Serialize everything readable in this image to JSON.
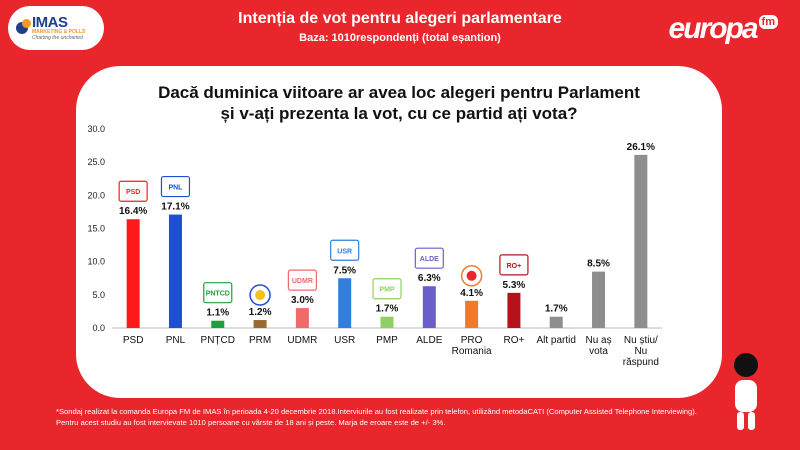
{
  "header": {
    "title": "Intenția de vot pentru alegeri parlamentare",
    "subtitle": "Baza: 1010respondenți (total eșantion)"
  },
  "logos": {
    "imas_big": "IMAS",
    "imas_small": "MARKETING & POLLS",
    "imas_slogan": "Charting the uncharted",
    "europa": "europa",
    "europa_fm": "fm"
  },
  "question": {
    "line1": "Dacă duminica viitoare ar avea loc alegeri pentru Parlament",
    "line2": "și v-ați prezenta la vot, cu ce partid ați vota?"
  },
  "party_logo_text": {
    "PSD": "PSD",
    "PNL": "PNL",
    "PNȚCD": "PNTCD",
    "UDMR": "UDMR",
    "USR": "USR",
    "PMP": "PMP",
    "ALDE": "ALDE",
    "RO+": "RO+"
  },
  "chart_data": {
    "type": "bar",
    "categories": [
      "PSD",
      "PNL",
      "PNȚCD",
      "PRM",
      "UDMR",
      "USR",
      "PMP",
      "ALDE",
      "PRO Romania",
      "RO+",
      "Alt partid",
      "Nu aș vota",
      "Nu știu/ Nu răspund"
    ],
    "category_lines": [
      [
        "PSD"
      ],
      [
        "PNL"
      ],
      [
        "PNȚCD"
      ],
      [
        "PRM"
      ],
      [
        "UDMR"
      ],
      [
        "USR"
      ],
      [
        "PMP"
      ],
      [
        "ALDE"
      ],
      [
        "PRO",
        "Romania"
      ],
      [
        "RO+"
      ],
      [
        "Alt partid"
      ],
      [
        "Nu aș",
        "vota"
      ],
      [
        "Nu știu/",
        "Nu",
        "răspund"
      ]
    ],
    "values": [
      16.4,
      17.1,
      1.1,
      1.2,
      3.0,
      7.5,
      1.7,
      6.3,
      4.1,
      5.3,
      1.7,
      8.5,
      26.1
    ],
    "value_labels": [
      "16.4%",
      "17.1%",
      "1.1%",
      "1.2%",
      "3.0%",
      "7.5%",
      "1.7%",
      "6.3%",
      "4.1%",
      "5.3%",
      "1.7%",
      "8.5%",
      "26.1%"
    ],
    "colors": [
      "#ff1a1a",
      "#1f4fd1",
      "#1f9e3d",
      "#9a6b2e",
      "#f06a6a",
      "#2e7fe0",
      "#8fd066",
      "#6a5fc9",
      "#f07a2a",
      "#b5121b",
      "#8e8e8e",
      "#8e8e8e",
      "#8e8e8e"
    ],
    "ylim": [
      0,
      30
    ],
    "yticks": [
      "0.0",
      "5.0",
      "10.0",
      "15.0",
      "20.0",
      "25.0",
      "30.0"
    ],
    "grid": false,
    "legend": "none"
  },
  "footnote": {
    "line1": "*Sondaj realizat la comanda Europa FM de IMAS în perioada 4-20 decembrie 2018.Interviurile au fost realizate prin telefon, utilizând metodaCATI (Computer Assisted Telephone Interviewing).",
    "line2": "Pentru acest studiu au fost intervievate 1010 persoane cu vârste de 18 ani și peste. Marja de eroare este de +/- 3%."
  }
}
